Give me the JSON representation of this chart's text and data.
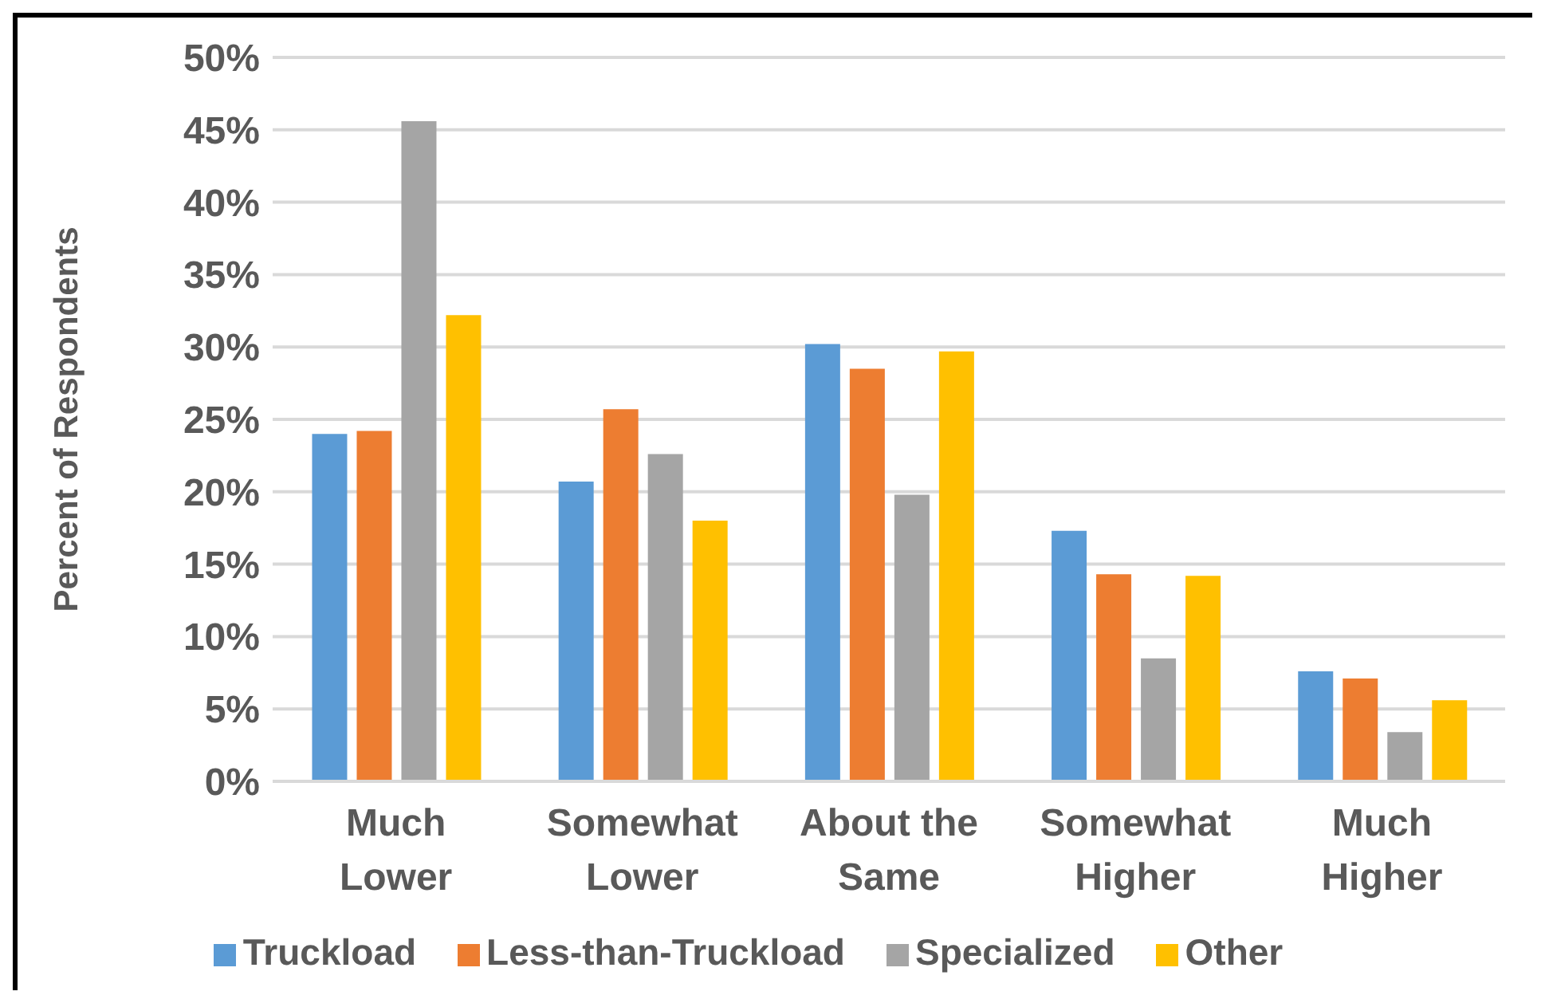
{
  "chart_data": {
    "type": "bar",
    "ylabel": "Percent of Respondents",
    "categories": [
      "Much Lower",
      "Somewhat Lower",
      "About the Same",
      "Somewhat Higher",
      "Much Higher"
    ],
    "series": [
      {
        "name": "Truckload",
        "color": "#5b9bd5",
        "values": [
          24.0,
          20.7,
          30.2,
          17.3,
          7.6
        ]
      },
      {
        "name": "Less-than-Truckload",
        "color": "#ed7d31",
        "values": [
          24.2,
          25.7,
          28.5,
          14.3,
          7.1
        ]
      },
      {
        "name": "Specialized",
        "color": "#a5a5a5",
        "values": [
          45.6,
          22.6,
          19.8,
          8.5,
          3.4
        ]
      },
      {
        "name": "Other",
        "color": "#ffc000",
        "values": [
          32.2,
          18.0,
          29.7,
          14.2,
          5.6
        ]
      }
    ],
    "ylim": [
      0,
      50
    ],
    "yticks": [
      {
        "value": 0,
        "label": "0%"
      },
      {
        "value": 5,
        "label": "5%"
      },
      {
        "value": 10,
        "label": "10%"
      },
      {
        "value": 15,
        "label": "15%"
      },
      {
        "value": 20,
        "label": "20%"
      },
      {
        "value": 25,
        "label": "25%"
      },
      {
        "value": 30,
        "label": "30%"
      },
      {
        "value": 35,
        "label": "35%"
      },
      {
        "value": 40,
        "label": "40%"
      },
      {
        "value": 45,
        "label": "45%"
      },
      {
        "value": 50,
        "label": "50%"
      }
    ],
    "grid": "y",
    "legend": "bottom"
  }
}
